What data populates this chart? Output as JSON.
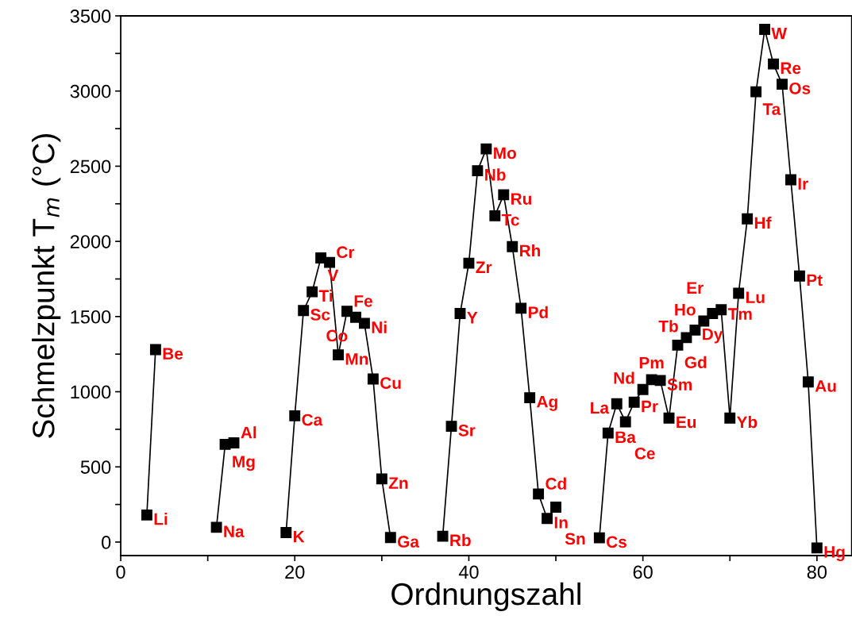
{
  "chart_data": {
    "type": "line",
    "xlabel": "Ordnungszahl",
    "ylabel": "Schmelzpunkt T$_{m}$ (°C)",
    "xlim": [
      0,
      84
    ],
    "ylim": [
      -90,
      3500
    ],
    "xticks": [
      0,
      {
        "value": 10,
        "label": null
      },
      20,
      {
        "value": 30,
        "label": null
      },
      40,
      {
        "value": 50,
        "label": null
      },
      60,
      {
        "value": 70,
        "label": null
      },
      80
    ],
    "yticks": [
      0,
      {
        "value": 250,
        "label": null
      },
      500,
      {
        "value": 750,
        "label": null
      },
      1000,
      {
        "value": 1250,
        "label": null
      },
      1500,
      {
        "value": 1750,
        "label": null
      },
      2000,
      {
        "value": 2250,
        "label": null
      },
      2500,
      {
        "value": 2750,
        "label": null
      },
      3000,
      {
        "value": 3250,
        "label": null
      },
      3500
    ],
    "grid": false,
    "marker": "square",
    "line_style": "solid",
    "legend": false,
    "series": [
      {
        "color": "#000000",
        "x": [
          3,
          4
        ],
        "values": [
          180,
          1280
        ]
      },
      {
        "color": "#000000",
        "x": [
          11,
          12,
          13
        ],
        "values": [
          98,
          650,
          660
        ]
      },
      {
        "color": "#000000",
        "x": [
          19,
          20,
          21,
          22,
          23,
          24,
          25,
          26,
          27,
          28,
          29,
          30,
          31
        ],
        "values": [
          63,
          840,
          1540,
          1665,
          1890,
          1860,
          1245,
          1535,
          1495,
          1455,
          1085,
          420,
          30
        ]
      },
      {
        "color": "#000000",
        "x": [
          37,
          38,
          39,
          40,
          41,
          42,
          43,
          44,
          45,
          46,
          47,
          48,
          49,
          50
        ],
        "values": [
          39,
          770,
          1520,
          1855,
          2470,
          2615,
          2170,
          2310,
          1965,
          1555,
          960,
          320,
          157,
          232
        ]
      },
      {
        "color": "#000000",
        "x": [
          55,
          56,
          57,
          58,
          59,
          60,
          61,
          62,
          63,
          64,
          65,
          66,
          67,
          68,
          69,
          70,
          71,
          72,
          73,
          74,
          75,
          76,
          77,
          78,
          79,
          80
        ],
        "values": [
          28,
          725,
          920,
          800,
          930,
          1015,
          1080,
          1075,
          825,
          1310,
          1360,
          1410,
          1470,
          1520,
          1545,
          825,
          1655,
          2150,
          2995,
          3410,
          3180,
          3045,
          2410,
          1770,
          1065,
          -39
        ]
      }
    ],
    "annotations": [
      {
        "text": "Li",
        "x": 3,
        "y": 180
      },
      {
        "text": "Be",
        "x": 4,
        "y": 1280
      },
      {
        "text": "Na",
        "x": 11,
        "y": 98
      },
      {
        "text": "Mg",
        "x": 12,
        "y": 650
      },
      {
        "text": "Al",
        "x": 13,
        "y": 660
      },
      {
        "text": "K",
        "x": 19,
        "y": 63
      },
      {
        "text": "Ca",
        "x": 20,
        "y": 840
      },
      {
        "text": "Sc",
        "x": 21,
        "y": 1540
      },
      {
        "text": "Ti",
        "x": 22,
        "y": 1665
      },
      {
        "text": "V",
        "x": 23,
        "y": 1890
      },
      {
        "text": "Cr",
        "x": 24,
        "y": 1860
      },
      {
        "text": "Mn",
        "x": 25,
        "y": 1245
      },
      {
        "text": "Fe",
        "x": 26,
        "y": 1535
      },
      {
        "text": "Co",
        "x": 27,
        "y": 1495
      },
      {
        "text": "Ni",
        "x": 28,
        "y": 1455
      },
      {
        "text": "Cu",
        "x": 29,
        "y": 1085
      },
      {
        "text": "Zn",
        "x": 30,
        "y": 420
      },
      {
        "text": "Ga",
        "x": 31,
        "y": 30
      },
      {
        "text": "Rb",
        "x": 37,
        "y": 39
      },
      {
        "text": "Sr",
        "x": 38,
        "y": 770
      },
      {
        "text": "Y",
        "x": 39,
        "y": 1520
      },
      {
        "text": "Zr",
        "x": 40,
        "y": 1855
      },
      {
        "text": "Nb",
        "x": 41,
        "y": 2470
      },
      {
        "text": "Mo",
        "x": 42,
        "y": 2615
      },
      {
        "text": "Tc",
        "x": 43,
        "y": 2170
      },
      {
        "text": "Ru",
        "x": 44,
        "y": 2310
      },
      {
        "text": "Rh",
        "x": 45,
        "y": 1965
      },
      {
        "text": "Pd",
        "x": 46,
        "y": 1555
      },
      {
        "text": "Ag",
        "x": 47,
        "y": 960
      },
      {
        "text": "Cd",
        "x": 48,
        "y": 320
      },
      {
        "text": "In",
        "x": 49,
        "y": 157
      },
      {
        "text": "Sn",
        "x": 50,
        "y": 232
      },
      {
        "text": "Cs",
        "x": 55,
        "y": 28
      },
      {
        "text": "Ba",
        "x": 56,
        "y": 725
      },
      {
        "text": "La",
        "x": 57,
        "y": 920
      },
      {
        "text": "Ce",
        "x": 58,
        "y": 800
      },
      {
        "text": "Pr",
        "x": 59,
        "y": 930
      },
      {
        "text": "Nd",
        "x": 60,
        "y": 1015
      },
      {
        "text": "Pm",
        "x": 61,
        "y": 1080
      },
      {
        "text": "Sm",
        "x": 62,
        "y": 1075
      },
      {
        "text": "Eu",
        "x": 63,
        "y": 825
      },
      {
        "text": "Gd",
        "x": 64,
        "y": 1310
      },
      {
        "text": "Tb",
        "x": 65,
        "y": 1360
      },
      {
        "text": "Dy",
        "x": 66,
        "y": 1410
      },
      {
        "text": "Ho",
        "x": 67,
        "y": 1470
      },
      {
        "text": "Er",
        "x": 68,
        "y": 1520
      },
      {
        "text": "Tm",
        "x": 69,
        "y": 1545
      },
      {
        "text": "Yb",
        "x": 70,
        "y": 825
      },
      {
        "text": "Lu",
        "x": 71,
        "y": 1655
      },
      {
        "text": "Hf",
        "x": 72,
        "y": 2150
      },
      {
        "text": "Ta",
        "x": 73,
        "y": 2995
      },
      {
        "text": "W",
        "x": 74,
        "y": 3410
      },
      {
        "text": "Re",
        "x": 75,
        "y": 3180
      },
      {
        "text": "Os",
        "x": 76,
        "y": 3045
      },
      {
        "text": "Ir",
        "x": 77,
        "y": 2410
      },
      {
        "text": "Pt",
        "x": 78,
        "y": 1770
      },
      {
        "text": "Au",
        "x": 79,
        "y": 1065
      },
      {
        "text": "Hg",
        "x": 80,
        "y": -39
      }
    ]
  }
}
